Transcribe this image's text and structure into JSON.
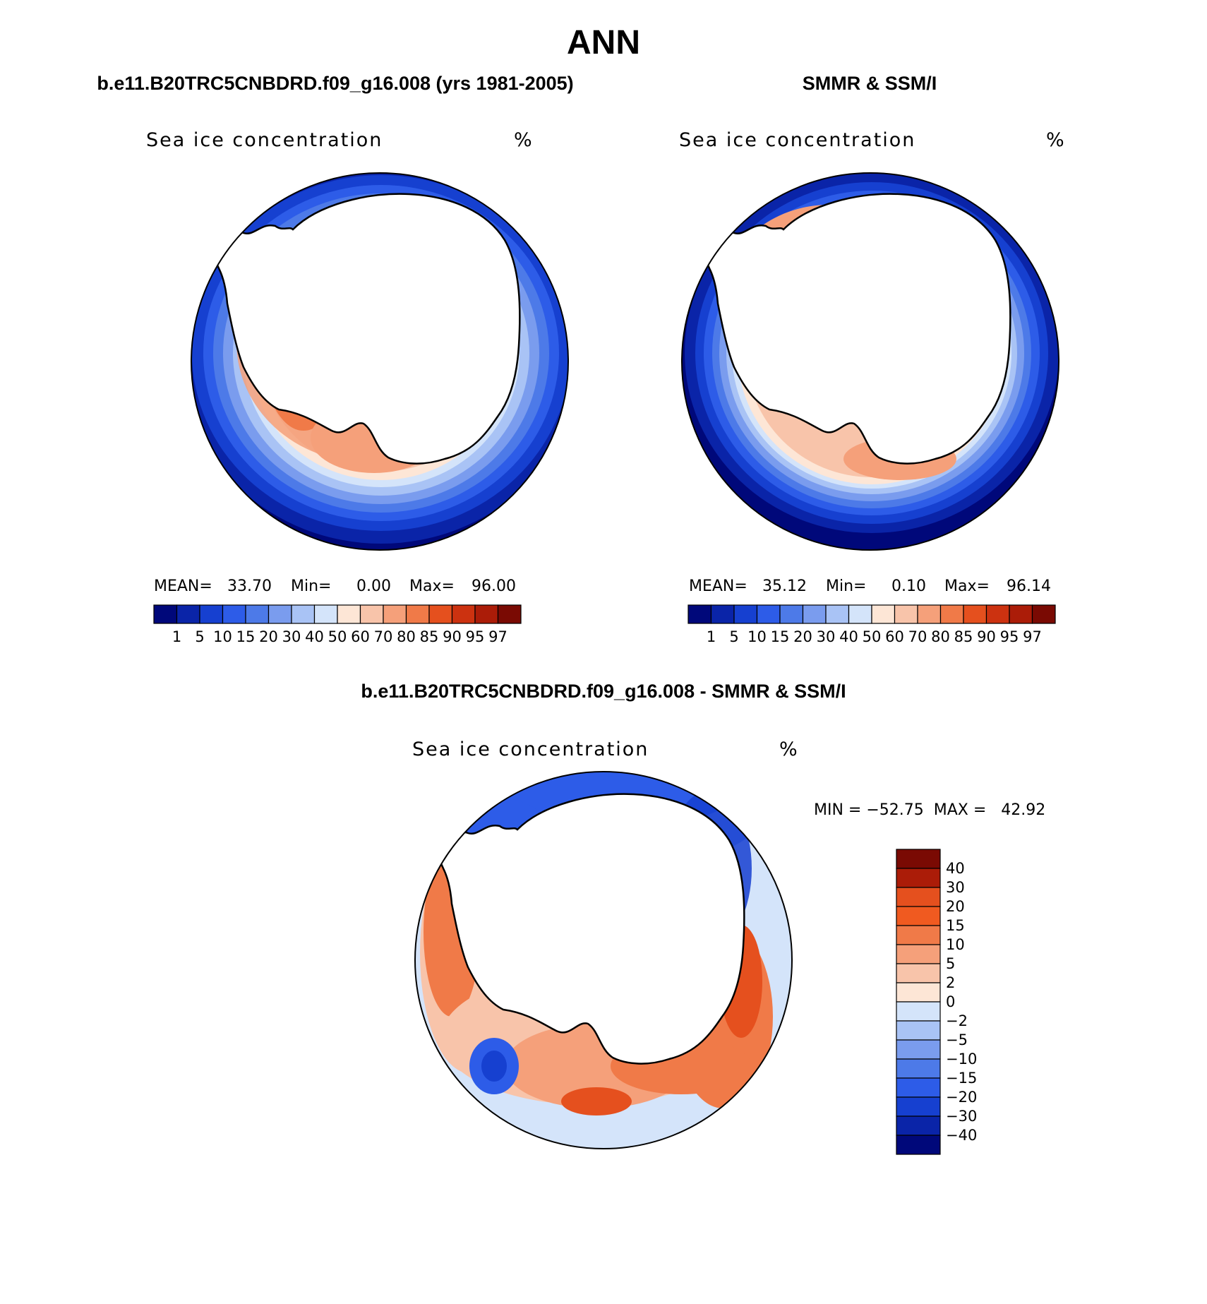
{
  "figure_title": "ANN",
  "panel_model": {
    "header": "b.e11.B20TRC5CNBDRD.f09_g16.008 (yrs 1981-2005)",
    "subtitle": "Sea ice concentration",
    "units": "%",
    "stats": {
      "mean_label": "MEAN=",
      "mean": "33.70",
      "min_label": "Min=",
      "min": "0.00",
      "max_label": "Max=",
      "max": "96.00"
    }
  },
  "panel_obs": {
    "header": "SMMR & SSM/I",
    "subtitle": "Sea ice concentration",
    "units": "%",
    "stats": {
      "mean_label": "MEAN=",
      "mean": "35.12",
      "min_label": "Min=",
      "min": "0.10",
      "max_label": "Max=",
      "max": "96.14"
    }
  },
  "panel_diff": {
    "header": "b.e11.B20TRC5CNBDRD.f09_g16.008 - SMMR & SSM/I",
    "subtitle": "Sea ice concentration",
    "units": "%",
    "minmax_text": "MIN = −52.75  MAX =   42.92"
  },
  "conc_colorbar": {
    "levels": [
      "1",
      "5",
      "10",
      "15",
      "20",
      "30",
      "40",
      "50",
      "60",
      "70",
      "80",
      "85",
      "90",
      "95",
      "97"
    ],
    "colors": [
      "#00087a",
      "#0a24a8",
      "#1640d0",
      "#2d5ce8",
      "#4d7ae8",
      "#7a9cee",
      "#a9c3f5",
      "#d4e4fa",
      "#fde6d6",
      "#f8c4aa",
      "#f5a07a",
      "#f07a48",
      "#e5501e",
      "#cc3210",
      "#ab1c08",
      "#7a0a03"
    ]
  },
  "diff_colorbar": {
    "levels": [
      "40",
      "30",
      "20",
      "15",
      "10",
      "5",
      "2",
      "0",
      "−2",
      "−5",
      "−10",
      "−15",
      "−20",
      "−30",
      "−40"
    ],
    "colors": [
      "#7a0a03",
      "#ab1c08",
      "#e5501e",
      "#f05a20",
      "#f07a48",
      "#f5a07a",
      "#f8c4aa",
      "#fde6d6",
      "#d4e4fa",
      "#a9c3f5",
      "#7a9cee",
      "#4d7ae8",
      "#2d5ce8",
      "#1640d0",
      "#0a24a8",
      "#00087a"
    ]
  }
}
